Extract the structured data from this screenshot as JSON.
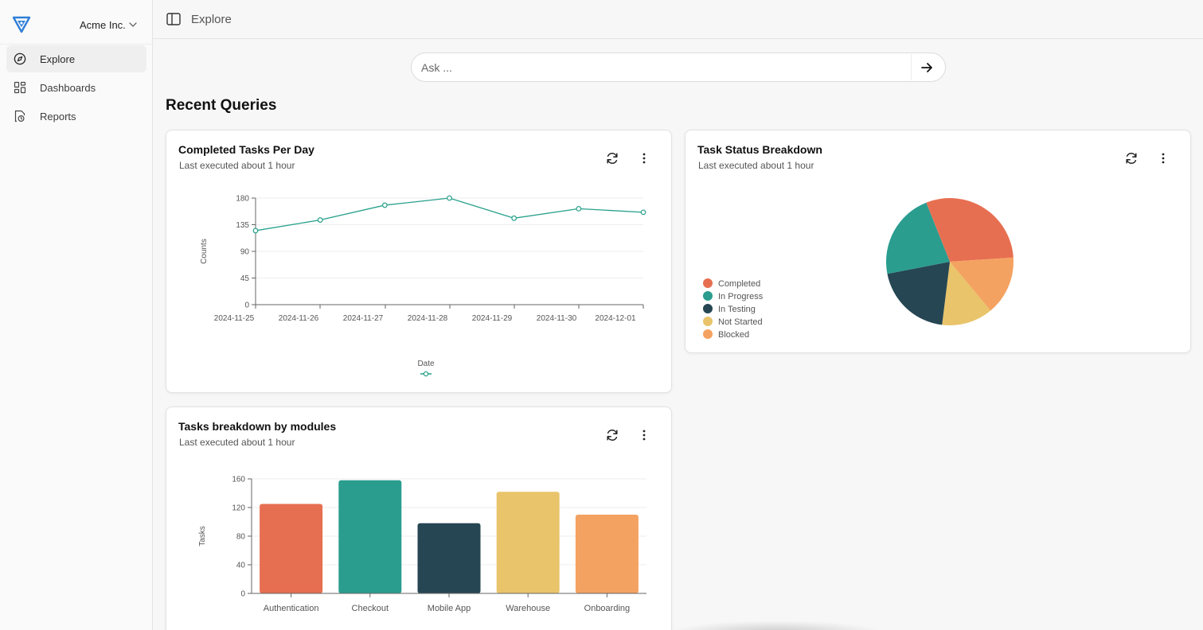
{
  "app": {
    "org_name": "Acme Inc.",
    "brand_color": "#2f7fd8"
  },
  "sidebar": {
    "items": [
      {
        "label": "Explore",
        "icon": "compass-icon",
        "active": true
      },
      {
        "label": "Dashboards",
        "icon": "dashboard-grid-icon",
        "active": false
      },
      {
        "label": "Reports",
        "icon": "report-icon",
        "active": false
      }
    ]
  },
  "header": {
    "breadcrumb": "Explore"
  },
  "search": {
    "placeholder": "Ask ...",
    "value": ""
  },
  "main": {
    "section_title": "Recent Queries",
    "cards": [
      {
        "title": "Completed Tasks Per Day",
        "subtitle": "Last executed about 1 hour"
      },
      {
        "title": "Task Status Breakdown",
        "subtitle": "Last executed about 1 hour"
      },
      {
        "title": "Tasks breakdown by modules",
        "subtitle": "Last executed about 1 hour"
      }
    ]
  },
  "chart_data": [
    {
      "type": "line",
      "x": [
        "2024-11-25",
        "2024-11-26",
        "2024-11-27",
        "2024-11-28",
        "2024-11-29",
        "2024-11-30",
        "2024-12-01"
      ],
      "series": [
        {
          "values": [
            125,
            143,
            168,
            180,
            146,
            162,
            156
          ],
          "color": "#26a08b"
        }
      ],
      "xlabel": "Date",
      "ylabel": "Counts",
      "yticks": [
        0,
        45,
        90,
        135,
        180
      ],
      "ylim": [
        0,
        180
      ],
      "grid": true,
      "legend": "bottom"
    },
    {
      "type": "pie",
      "categories": [
        "Completed",
        "In Progress",
        "In Testing",
        "Not Started",
        "Blocked"
      ],
      "values": [
        30,
        22,
        20,
        13,
        15
      ],
      "colors": [
        "#e76f51",
        "#2a9d8f",
        "#264653",
        "#e9c46a",
        "#f4a261"
      ],
      "legend": "left"
    },
    {
      "type": "bar",
      "categories": [
        "Authentication",
        "Checkout",
        "Mobile App",
        "Warehouse",
        "Onboarding"
      ],
      "values": [
        125,
        158,
        98,
        142,
        110
      ],
      "colors": [
        "#e76f51",
        "#2a9d8f",
        "#264653",
        "#e9c46a",
        "#f4a261"
      ],
      "ylabel": "Tasks",
      "yticks": [
        0,
        40,
        80,
        120,
        160
      ],
      "ylim": [
        0,
        160
      ],
      "grid": true
    }
  ]
}
